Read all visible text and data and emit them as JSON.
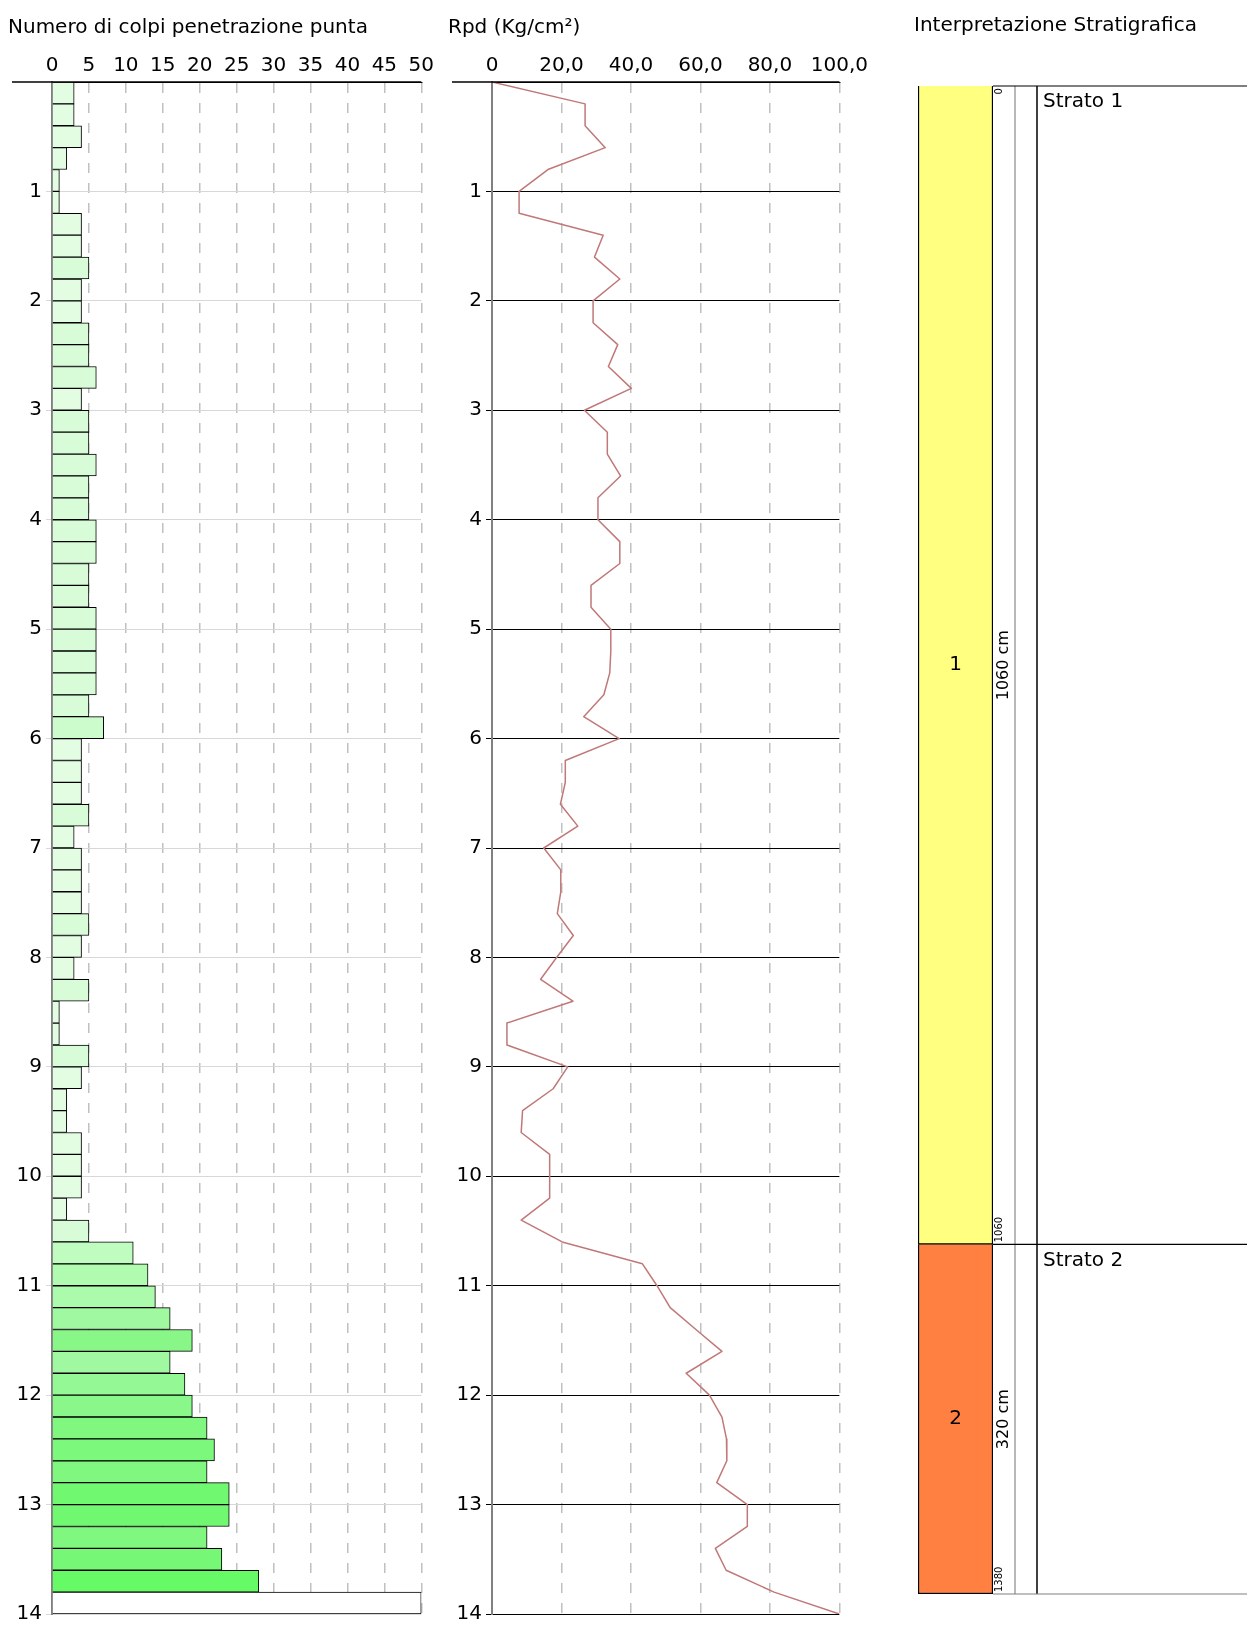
{
  "chart_data": [
    {
      "type": "bar",
      "orientation": "horizontal",
      "title": "Numero di colpi penetrazione punta",
      "x": [
        0.1,
        0.3,
        0.5,
        0.7,
        0.9,
        1.1,
        1.3,
        1.5,
        1.7,
        1.9,
        2.1,
        2.3,
        2.5,
        2.7,
        2.9,
        3.1,
        3.3,
        3.5,
        3.7,
        3.9,
        4.1,
        4.3,
        4.5,
        4.7,
        4.9,
        5.1,
        5.3,
        5.5,
        5.7,
        5.9,
        6.1,
        6.3,
        6.5,
        6.7,
        6.9,
        7.1,
        7.3,
        7.5,
        7.7,
        7.9,
        8.1,
        8.3,
        8.5,
        8.7,
        8.9,
        9.1,
        9.3,
        9.5,
        9.7,
        9.9,
        10.1,
        10.3,
        10.5,
        10.7,
        10.9,
        11.1,
        11.3,
        11.5,
        11.7,
        11.9,
        12.1,
        12.3,
        12.5,
        12.7,
        12.9,
        13.1,
        13.3,
        13.5,
        13.7,
        13.9
      ],
      "values": [
        3,
        3,
        4,
        2,
        1,
        1,
        4,
        4,
        5,
        4,
        4,
        5,
        5,
        6,
        4,
        5,
        5,
        6,
        5,
        5,
        6,
        6,
        5,
        5,
        6,
        6,
        6,
        6,
        5,
        7,
        4,
        4,
        4,
        5,
        3,
        4,
        4,
        4,
        5,
        4,
        3,
        5,
        1,
        1,
        5,
        4,
        2,
        2,
        4,
        4,
        4,
        2,
        5,
        11,
        13,
        14,
        16,
        19,
        16,
        18,
        19,
        21,
        22,
        21,
        24,
        24,
        21,
        23,
        28,
        50
      ],
      "colors": [
        "#e3fde3",
        "#e3fde3",
        "#e3fde3",
        "#e3fde3",
        "#e3fde3",
        "#e3fde3",
        "#e3fde3",
        "#e3fde3",
        "#d8fcd8",
        "#e3fde3",
        "#e3fde3",
        "#d8fcd8",
        "#d8fcd8",
        "#d8fcd8",
        "#e3fde3",
        "#d8fcd8",
        "#d8fcd8",
        "#d8fcd8",
        "#d8fcd8",
        "#d8fcd8",
        "#d8fcd8",
        "#d8fcd8",
        "#d8fcd8",
        "#d8fcd8",
        "#d8fcd8",
        "#d8fcd8",
        "#d8fcd8",
        "#d8fcd8",
        "#d8fcd8",
        "#ccfccc",
        "#e3fde3",
        "#e3fde3",
        "#e3fde3",
        "#d8fcd8",
        "#e3fde3",
        "#e3fde3",
        "#e3fde3",
        "#e3fde3",
        "#d8fcd8",
        "#e3fde3",
        "#e3fde3",
        "#d8fcd8",
        "#e3fde3",
        "#e3fde3",
        "#d8fcd8",
        "#e3fde3",
        "#e3fde3",
        "#e3fde3",
        "#e3fde3",
        "#e3fde3",
        "#e3fde3",
        "#e3fde3",
        "#d8fcd8",
        "#c0fcc0",
        "#b0fbb0",
        "#acfaac",
        "#a0f8a0",
        "#88f788",
        "#a0f8a0",
        "#94f894",
        "#8af78a",
        "#80f880",
        "#7cf87c",
        "#80f880",
        "#70f870",
        "#70f870",
        "#80f880",
        "#76f876",
        "#66fa66",
        "#ffffff"
      ],
      "xlim": [
        0,
        50
      ],
      "xticks": [
        0,
        5,
        10,
        15,
        20,
        25,
        30,
        35,
        40,
        45,
        50
      ],
      "ylim": [
        14,
        0
      ],
      "yticks": [
        1,
        2,
        3,
        4,
        5,
        6,
        7,
        8,
        9,
        10,
        11,
        12,
        13,
        14
      ],
      "grid": true
    },
    {
      "type": "line",
      "orientation": "horizontal",
      "title": "Rpd (Kg/cm²)",
      "color": "#c07878",
      "marker": "none",
      "x": [
        0,
        0.2,
        0.4,
        0.6,
        0.8,
        1,
        1.2,
        1.4,
        1.6,
        1.8,
        2,
        2.2,
        2.4,
        2.6,
        2.8,
        3,
        3.2,
        3.4,
        3.6,
        3.8,
        4,
        4.2,
        4.4,
        4.6,
        4.8,
        5,
        5.2,
        5.4,
        5.6,
        5.8,
        6,
        6.2,
        6.4,
        6.6,
        6.8,
        7,
        7.2,
        7.4,
        7.6,
        7.8,
        8,
        8.2,
        8.4,
        8.6,
        8.8,
        9,
        9.2,
        9.4,
        9.6,
        9.8,
        10,
        10.2,
        10.4,
        10.6,
        10.8,
        11,
        11.2,
        11.4,
        11.6,
        11.8,
        12,
        12.2,
        12.4,
        12.6,
        12.8,
        13,
        13.2,
        13.4,
        13.6,
        13.8,
        14
      ],
      "values": [
        0,
        26.8,
        26.8,
        32.6,
        16.1,
        7.8,
        7.8,
        32.0,
        29.5,
        36.8,
        29.1,
        29.1,
        36.2,
        33.5,
        40.1,
        26.6,
        33.2,
        33.2,
        37.0,
        30.5,
        30.5,
        36.8,
        36.8,
        28.5,
        28.5,
        34.2,
        34.2,
        33.9,
        32.2,
        26.4,
        36.6,
        21.1,
        21.1,
        19.7,
        24.7,
        14.9,
        19.8,
        19.8,
        18.8,
        23.4,
        18.6,
        14.0,
        23.3,
        4.3,
        4.3,
        21.8,
        17.6,
        8.8,
        8.4,
        16.6,
        16.6,
        16.6,
        8.4,
        20.2,
        43.3,
        47.5,
        51.3,
        58.7,
        66.2,
        55.9,
        62.6,
        66.2,
        67.5,
        67.6,
        64.7,
        73.5,
        73.5,
        64.3,
        67.4,
        81.2,
        100
      ],
      "xlim": [
        0,
        100
      ],
      "xticks": [
        0,
        {
          "value": 20,
          "label": "20,0"
        },
        {
          "value": 40,
          "label": "40,0"
        },
        {
          "value": 60,
          "label": "60,0"
        },
        {
          "value": 80,
          "label": "80,0"
        },
        {
          "value": 100,
          "label": "100,0"
        }
      ],
      "ylim": [
        14,
        0
      ],
      "yticks": [
        1,
        2,
        3,
        4,
        5,
        6,
        7,
        8,
        9,
        10,
        11,
        12,
        13,
        14
      ],
      "grid": true
    },
    {
      "type": "other",
      "title": "Interpretazione Stratigrafica",
      "categories": [
        "1",
        "2"
      ],
      "values": [
        1060,
        320
      ],
      "colors": [
        "#ffff80",
        "#ff8040"
      ],
      "value_labels": [
        "1060 cm",
        "320 cm"
      ],
      "annotations": [
        "Strato 1",
        "Strato 2",
        "0",
        "1060",
        "1380"
      ]
    }
  ]
}
